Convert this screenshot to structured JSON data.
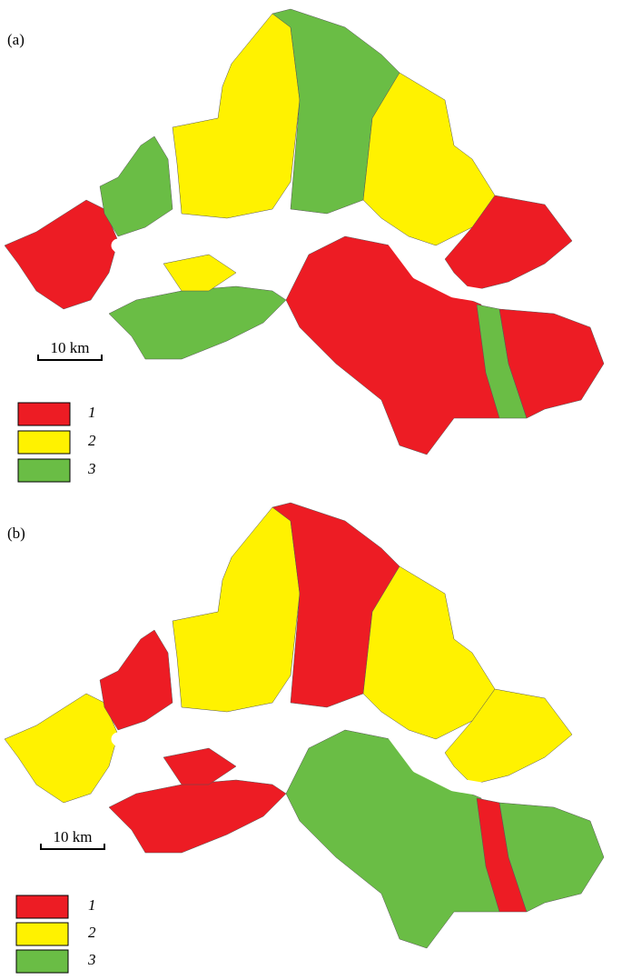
{
  "panels": [
    {
      "label": "(a)",
      "scale_bar": "10 km",
      "legend": [
        "1",
        "2",
        "3"
      ]
    },
    {
      "label": "(b)",
      "scale_bar": "10 km",
      "legend": [
        "1",
        "2",
        "3"
      ]
    }
  ]
}
